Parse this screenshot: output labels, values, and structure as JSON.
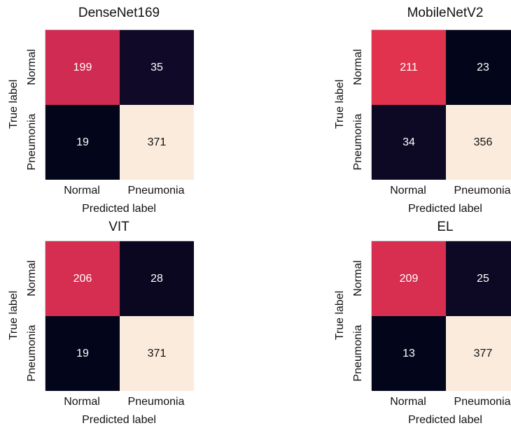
{
  "chart_data": [
    {
      "type": "heatmap",
      "title": "DenseNet169",
      "xlabel": "Predicted label",
      "ylabel": "True label",
      "x_categories": [
        "Normal",
        "Pneumonia"
      ],
      "y_categories": [
        "Normal",
        "Pneumonia"
      ],
      "values": [
        [
          199,
          35
        ],
        [
          19,
          371
        ]
      ]
    },
    {
      "type": "heatmap",
      "title": "MobileNetV2",
      "xlabel": "Predicted label",
      "ylabel": "True label",
      "x_categories": [
        "Normal",
        "Pneumonia"
      ],
      "y_categories": [
        "Normal",
        "Pneumonia"
      ],
      "values": [
        [
          211,
          23
        ],
        [
          34,
          356
        ]
      ]
    },
    {
      "type": "heatmap",
      "title": "VIT",
      "xlabel": "Predicted label",
      "ylabel": "True label",
      "x_categories": [
        "Normal",
        "Pneumonia"
      ],
      "y_categories": [
        "Normal",
        "Pneumonia"
      ],
      "values": [
        [
          206,
          28
        ],
        [
          19,
          371
        ]
      ]
    },
    {
      "type": "heatmap",
      "title": "EL",
      "xlabel": "Predicted label",
      "ylabel": "True label",
      "x_categories": [
        "Normal",
        "Pneumonia"
      ],
      "y_categories": [
        "Normal",
        "Pneumonia"
      ],
      "values": [
        [
          209,
          25
        ],
        [
          13,
          377
        ]
      ]
    }
  ],
  "colors": {
    "scale": [
      "#03051a",
      "#2d1042",
      "#6f1d5b",
      "#b51f5c",
      "#e3344d",
      "#f26d4f",
      "#f6a47a",
      "#faebdd"
    ],
    "text_dark_cell": "#ffffff",
    "text_light_cell": "#111111"
  }
}
